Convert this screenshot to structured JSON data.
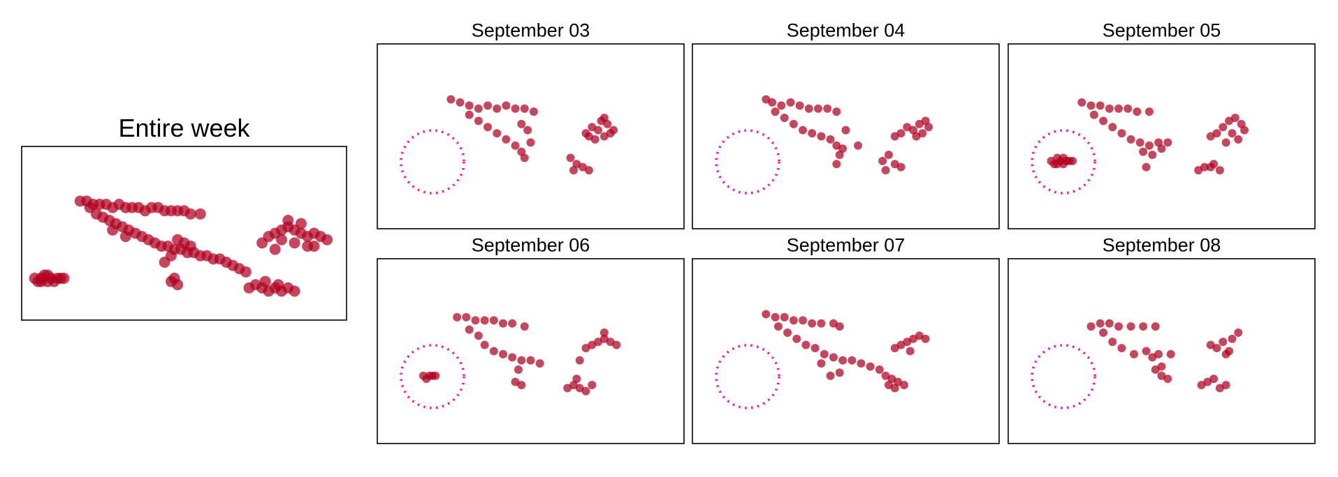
{
  "chart_data": [
    {
      "type": "scatter",
      "title": "Entire week",
      "color": "#b0001e",
      "xlim": [
        0,
        100
      ],
      "ylim": [
        0,
        54
      ],
      "x": [
        4,
        5,
        6,
        7,
        8,
        9,
        10,
        11,
        12,
        13,
        6,
        8,
        18,
        20,
        22,
        24,
        26,
        28,
        30,
        32,
        34,
        36,
        38,
        40,
        42,
        44,
        46,
        48,
        50,
        52,
        55,
        21,
        23,
        25,
        27,
        29,
        31,
        33,
        35,
        37,
        39,
        41,
        43,
        45,
        47,
        49,
        51,
        53,
        55,
        57,
        59,
        61,
        63,
        65,
        67,
        69,
        28,
        32,
        48,
        50,
        52,
        46,
        44,
        46,
        48,
        47,
        70,
        72,
        74,
        76,
        78,
        80,
        82,
        84,
        75,
        79,
        74,
        76,
        78,
        80,
        82,
        84,
        86,
        88,
        90,
        92,
        94,
        80,
        84,
        88,
        86,
        82,
        78,
        90
      ],
      "y": [
        13,
        12,
        13,
        14,
        12,
        13,
        12,
        13,
        13,
        13,
        12,
        14,
        37,
        37,
        36,
        36,
        36,
        35,
        36,
        35,
        35,
        35,
        34,
        35,
        35,
        34,
        34,
        34,
        34,
        33,
        33,
        35,
        33,
        32,
        31,
        30,
        29,
        28,
        27,
        26,
        25,
        24,
        23,
        23,
        22,
        22,
        21,
        21,
        20,
        20,
        19,
        19,
        18,
        17,
        16,
        15,
        28,
        26,
        25,
        24,
        23,
        20,
        18,
        12,
        11,
        13,
        10,
        11,
        10,
        9,
        10,
        9,
        10,
        9,
        12,
        11,
        24,
        26,
        27,
        28,
        29,
        28,
        27,
        26,
        27,
        26,
        25,
        25,
        24,
        23,
        30,
        31,
        22,
        23
      ]
    },
    {
      "type": "scatter",
      "title": "September 03",
      "color": "#b0001e",
      "xlim": [
        0,
        100
      ],
      "ylim": [
        0,
        60
      ],
      "x": [
        24,
        27,
        30,
        33,
        36,
        39,
        42,
        45,
        48,
        51,
        30,
        33,
        36,
        39,
        42,
        45,
        47,
        48,
        50,
        49,
        47,
        68,
        70,
        72,
        74,
        75,
        76,
        73,
        71,
        77,
        69,
        74,
        63,
        65,
        67,
        69,
        64
      ],
      "y": [
        42,
        41,
        40,
        39,
        40,
        39,
        40,
        39,
        39,
        38,
        37,
        35,
        33,
        31,
        29,
        27,
        25,
        23,
        28,
        32,
        34,
        31,
        33,
        32,
        30,
        34,
        31,
        35,
        29,
        32,
        30,
        36,
        23,
        21,
        20,
        19,
        19
      ]
    },
    {
      "type": "scatter",
      "title": "September 04",
      "color": "#b0001e",
      "xlim": [
        0,
        100
      ],
      "ylim": [
        0,
        60
      ],
      "x": [
        24,
        26,
        29,
        32,
        35,
        38,
        41,
        44,
        47,
        27,
        30,
        33,
        36,
        39,
        42,
        45,
        47,
        48,
        47,
        49,
        50,
        54,
        66,
        68,
        70,
        72,
        74,
        76,
        77,
        73,
        75,
        62,
        64,
        66,
        68,
        63
      ],
      "y": [
        42,
        41,
        40,
        41,
        40,
        39,
        39,
        39,
        38,
        38,
        36,
        34,
        32,
        31,
        30,
        29,
        27,
        24,
        21,
        26,
        32,
        27,
        30,
        31,
        33,
        32,
        34,
        35,
        33,
        30,
        31,
        22,
        24,
        21,
        20,
        19
      ]
    },
    {
      "type": "scatter",
      "title": "September 05",
      "color": "#b0001e",
      "xlim": [
        0,
        100
      ],
      "ylim": [
        0,
        60
      ],
      "x": [
        24,
        27,
        30,
        33,
        36,
        39,
        42,
        46,
        28,
        31,
        34,
        37,
        40,
        43,
        46,
        49,
        52,
        44,
        47,
        50,
        45,
        66,
        68,
        70,
        72,
        74,
        76,
        73,
        75,
        71,
        77,
        62,
        64,
        66,
        69,
        67,
        14,
        15,
        16,
        17,
        18,
        19,
        20,
        16,
        18,
        21
      ],
      "y": [
        41,
        40,
        40,
        39,
        39,
        39,
        38,
        38,
        37,
        35,
        33,
        31,
        29,
        28,
        27,
        28,
        28,
        25,
        24,
        26,
        20,
        30,
        31,
        33,
        35,
        36,
        34,
        31,
        29,
        28,
        32,
        19,
        20,
        20,
        19,
        21,
        22,
        21,
        23,
        22,
        21,
        22,
        22,
        21,
        23,
        22
      ]
    },
    {
      "type": "scatter",
      "title": "September 06",
      "color": "#b0001e",
      "xlim": [
        0,
        100
      ],
      "ylim": [
        0,
        60
      ],
      "x": [
        26,
        29,
        32,
        35,
        38,
        41,
        44,
        48,
        30,
        33,
        35,
        38,
        41,
        44,
        47,
        50,
        53,
        46,
        45,
        47,
        68,
        70,
        72,
        74,
        76,
        78,
        74,
        66,
        62,
        64,
        66,
        68,
        70,
        65,
        15,
        16,
        17,
        18,
        19
      ],
      "y": [
        41,
        41,
        40,
        40,
        40,
        39,
        39,
        38,
        37,
        35,
        32,
        30,
        29,
        28,
        27,
        27,
        26,
        24,
        20,
        19,
        31,
        32,
        33,
        34,
        33,
        32,
        36,
        27,
        18,
        19,
        18,
        17,
        19,
        21,
        22,
        21,
        22,
        22,
        22
      ]
    },
    {
      "type": "scatter",
      "title": "September 07",
      "color": "#b0001e",
      "xlim": [
        0,
        100
      ],
      "ylim": [
        0,
        60
      ],
      "x": [
        24,
        27,
        30,
        33,
        36,
        39,
        42,
        46,
        48,
        28,
        31,
        34,
        37,
        40,
        43,
        46,
        49,
        52,
        55,
        58,
        61,
        63,
        65,
        67,
        69,
        66,
        64,
        45,
        48,
        42,
        66,
        68,
        70,
        72,
        74,
        76,
        71
      ],
      "y": [
        42,
        41,
        41,
        40,
        40,
        39,
        39,
        39,
        38,
        38,
        36,
        34,
        32,
        31,
        29,
        28,
        27,
        27,
        26,
        25,
        24,
        22,
        21,
        20,
        19,
        18,
        19,
        22,
        23,
        26,
        31,
        32,
        33,
        34,
        35,
        34,
        30
      ]
    },
    {
      "type": "scatter",
      "title": "September 08",
      "color": "#b0001e",
      "xlim": [
        0,
        100
      ],
      "ylim": [
        0,
        60
      ],
      "x": [
        27,
        30,
        33,
        36,
        40,
        44,
        48,
        31,
        34,
        37,
        41,
        45,
        47,
        49,
        53,
        48,
        50,
        52,
        50,
        66,
        68,
        70,
        72,
        73,
        75,
        71,
        63,
        65,
        67,
        69,
        71
      ],
      "y": [
        38,
        39,
        39,
        38,
        38,
        38,
        38,
        36,
        33,
        31,
        29,
        30,
        28,
        29,
        29,
        24,
        22,
        21,
        25,
        32,
        31,
        33,
        30,
        34,
        36,
        29,
        19,
        20,
        21,
        18,
        19
      ]
    }
  ]
}
